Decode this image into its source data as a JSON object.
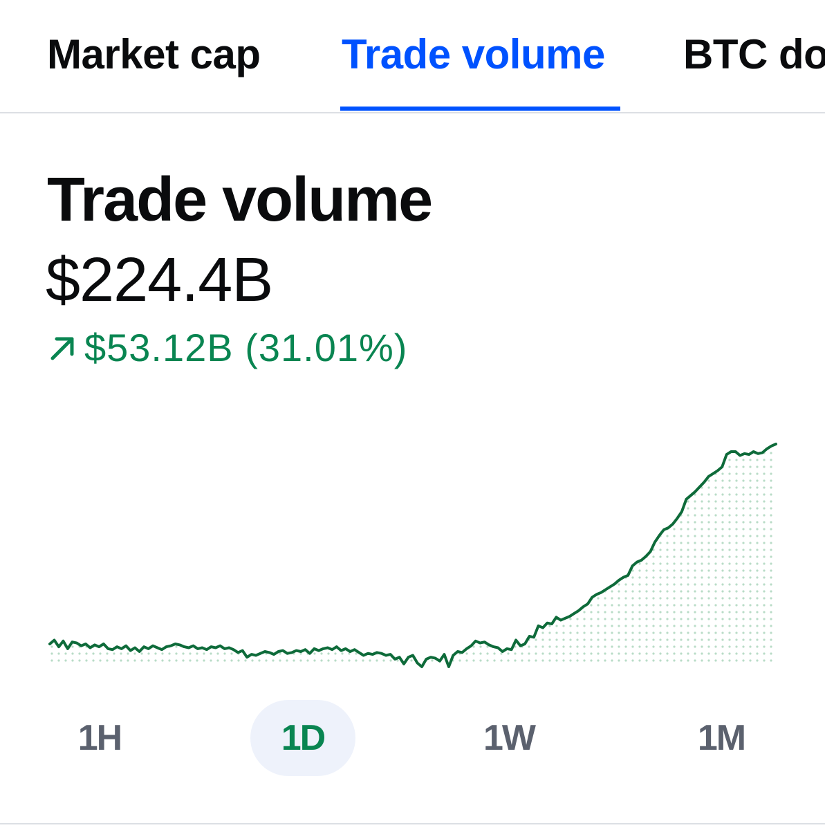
{
  "tabs": [
    {
      "label": "Market cap",
      "active": false
    },
    {
      "label": "Trade volume",
      "active": true
    },
    {
      "label": "BTC dominance",
      "active": false
    }
  ],
  "metric": {
    "title": "Trade volume",
    "value": "$224.4B",
    "change_text": "$53.12B (31.01%)",
    "change_direction": "up",
    "change_icon": "arrow-up-right-icon"
  },
  "colors": {
    "accent": "#0052ff",
    "positive": "#098551",
    "line": "#0e6b3a",
    "muted": "#5b616e",
    "pill_bg": "#eef2fb"
  },
  "time_ranges": [
    {
      "label": "1H",
      "selected": false
    },
    {
      "label": "1D",
      "selected": true
    },
    {
      "label": "1W",
      "selected": false
    },
    {
      "label": "1M",
      "selected": false
    }
  ],
  "chart_data": {
    "type": "area",
    "fill_style": "dotted",
    "grid": false,
    "axes_visible": false,
    "series": [
      {
        "values": [
          186,
          190,
          183,
          189,
          181,
          188,
          187,
          184,
          186,
          182,
          185,
          183,
          186,
          181,
          180,
          183,
          181,
          184,
          179,
          182,
          178,
          183,
          181,
          184,
          182,
          180,
          183,
          184,
          186,
          185,
          183,
          182,
          184,
          181,
          182,
          180,
          183,
          182,
          184,
          181,
          182,
          180,
          177,
          179,
          172,
          175,
          174,
          176,
          178,
          177,
          175,
          178,
          179,
          176,
          177,
          179,
          178,
          180,
          176,
          181,
          179,
          181,
          182,
          180,
          183,
          179,
          181,
          178,
          180,
          177,
          174,
          176,
          175,
          177,
          176,
          174,
          175,
          170,
          172,
          165,
          172,
          174,
          166,
          162,
          170,
          172,
          171,
          168,
          175,
          162,
          174,
          178,
          177,
          181,
          184,
          189,
          187,
          188,
          185,
          183,
          182,
          178,
          181,
          180,
          190,
          184,
          186,
          194,
          193,
          205,
          203,
          208,
          207,
          214,
          211,
          213,
          215,
          218,
          221,
          225,
          228,
          235,
          238,
          240,
          243,
          246,
          249,
          253,
          256,
          258,
          268,
          272,
          274,
          278,
          283,
          293,
          300,
          306,
          308,
          312,
          318,
          325,
          338,
          342,
          346,
          351,
          356,
          362,
          365,
          368,
          372,
          385,
          388,
          388,
          384,
          386,
          385,
          388,
          386,
          387,
          391,
          394,
          396
        ]
      }
    ]
  }
}
